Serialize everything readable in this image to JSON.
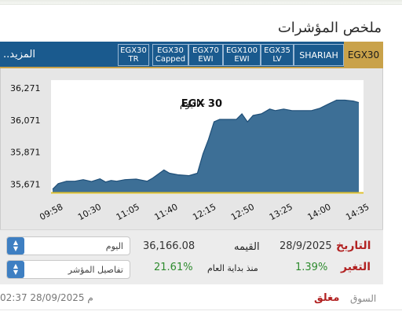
{
  "header": {
    "title": "ملخص المؤشرات"
  },
  "tabs": [
    {
      "label": "EGX30",
      "active": true
    },
    {
      "label": "SHARIAH"
    },
    {
      "label": "EGX35\nLV"
    },
    {
      "label": "EGX100\nEWI"
    },
    {
      "label": "EGX70\nEWI"
    },
    {
      "label": "EGX30\nCapped"
    },
    {
      "label": "EGX30\nTR"
    }
  ],
  "more_label": "المزيد..",
  "chart_data": {
    "type": "area",
    "title": "EGX 30",
    "subtitle": "- اليوم",
    "x": [
      "09:58",
      "10:30",
      "11:05",
      "11:40",
      "12:15",
      "12:50",
      "13:25",
      "14:00",
      "14:35"
    ],
    "y_ticks": [
      "36,271",
      "36,071",
      "35,871",
      "35,671"
    ],
    "ylim": [
      35620,
      36320
    ],
    "series": [
      {
        "values": [
          [
            0,
            35640
          ],
          [
            2,
            35675
          ],
          [
            5,
            35690
          ],
          [
            8,
            35690
          ],
          [
            11,
            35700
          ],
          [
            14,
            35688
          ],
          [
            17,
            35705
          ],
          [
            19,
            35685
          ],
          [
            21,
            35695
          ],
          [
            23,
            35690
          ],
          [
            26,
            35700
          ],
          [
            30,
            35703
          ],
          [
            34,
            35690
          ],
          [
            36,
            35710
          ],
          [
            38,
            35735
          ],
          [
            40,
            35760
          ],
          [
            42,
            35740
          ],
          [
            45,
            35730
          ],
          [
            49,
            35725
          ],
          [
            52,
            35740
          ],
          [
            54,
            35860
          ],
          [
            56,
            35950
          ],
          [
            58,
            36060
          ],
          [
            60,
            36075
          ],
          [
            63,
            36075
          ],
          [
            66,
            36075
          ],
          [
            68,
            36110
          ],
          [
            70,
            36060
          ],
          [
            72,
            36100
          ],
          [
            75,
            36110
          ],
          [
            78,
            36140
          ],
          [
            80,
            36130
          ],
          [
            83,
            36140
          ],
          [
            86,
            36130
          ],
          [
            90,
            36130
          ],
          [
            93,
            36130
          ],
          [
            96,
            36145
          ],
          [
            99,
            36170
          ],
          [
            102,
            36195
          ],
          [
            105,
            36195
          ],
          [
            108,
            36190
          ],
          [
            110,
            36180
          ]
        ]
      }
    ],
    "fill_color": "#3d6f96",
    "line_color": "#1f4f78",
    "plot_bg": "#ffffff",
    "grid": false
  },
  "info": {
    "period_select": "اليوم",
    "details_select": "تفاصيل المؤشر",
    "value": "36,166.08",
    "value_label": "القيمه",
    "date": "28/9/2025",
    "date_label": "التاريخ",
    "ytd_change": "21.61%",
    "ytd_label": "منذ بداية العام",
    "change": "1.39%",
    "change_label": "التغير"
  },
  "status": {
    "datetime": "02:37 28/09/2025 م",
    "market_label": "السوق",
    "market_state": "مغلق"
  }
}
